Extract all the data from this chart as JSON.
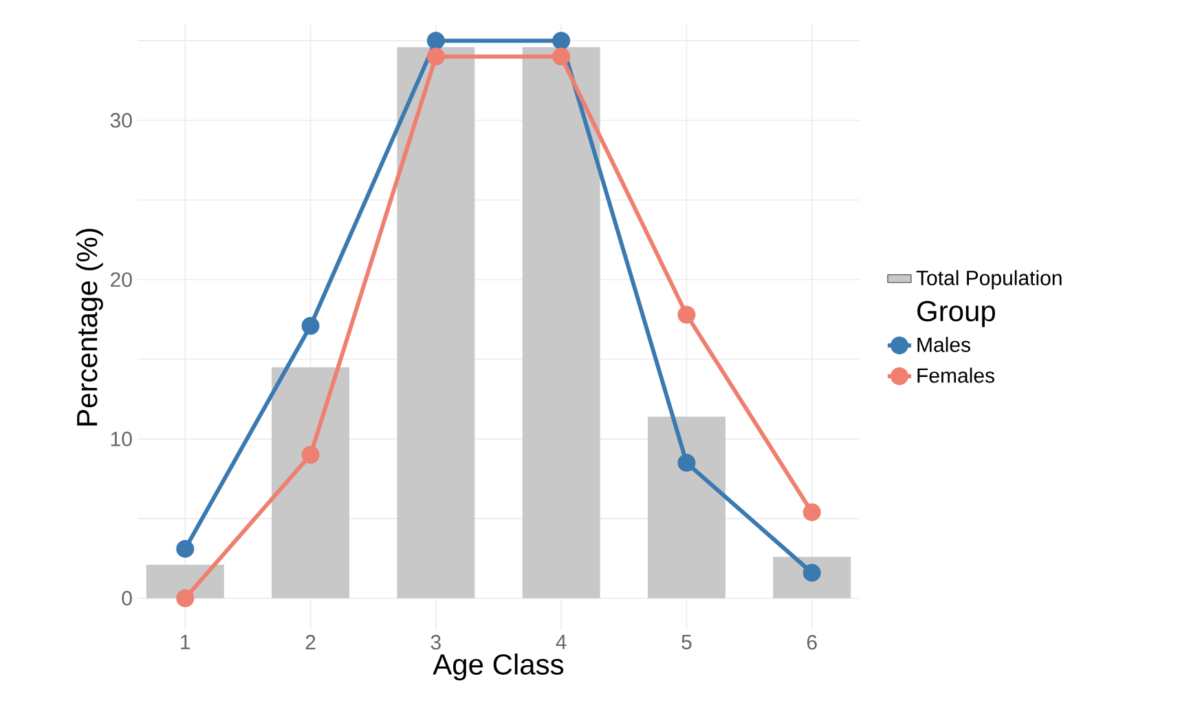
{
  "chart_data": {
    "type": "line",
    "xlabel": "Age Class",
    "ylabel": "Percentage (%)",
    "legend_title": "Group",
    "categories": [
      "1",
      "2",
      "3",
      "4",
      "5",
      "6"
    ],
    "series": [
      {
        "name": "Total Population",
        "type": "bar",
        "color": "#c8c8c8",
        "values": [
          2.1,
          14.5,
          34.6,
          34.6,
          11.4,
          2.6
        ]
      },
      {
        "name": "Males",
        "color": "#3a7ab0",
        "values": [
          3.1,
          17.1,
          35.0,
          35.0,
          8.5,
          1.6
        ]
      },
      {
        "name": "Females",
        "color": "#ef7f6f",
        "values": [
          0,
          9.0,
          34.0,
          34.0,
          17.8,
          5.4
        ]
      }
    ],
    "ylim": [
      -2,
      36
    ],
    "yticks": [
      0,
      {
        "value": 5,
        "label": null
      },
      10,
      {
        "value": 15,
        "label": null
      },
      20,
      {
        "value": 25,
        "label": null
      },
      30,
      {
        "value": 35,
        "label": null
      }
    ],
    "grid": true,
    "legend": "right",
    "marker": "circle",
    "line_style": "solid"
  }
}
